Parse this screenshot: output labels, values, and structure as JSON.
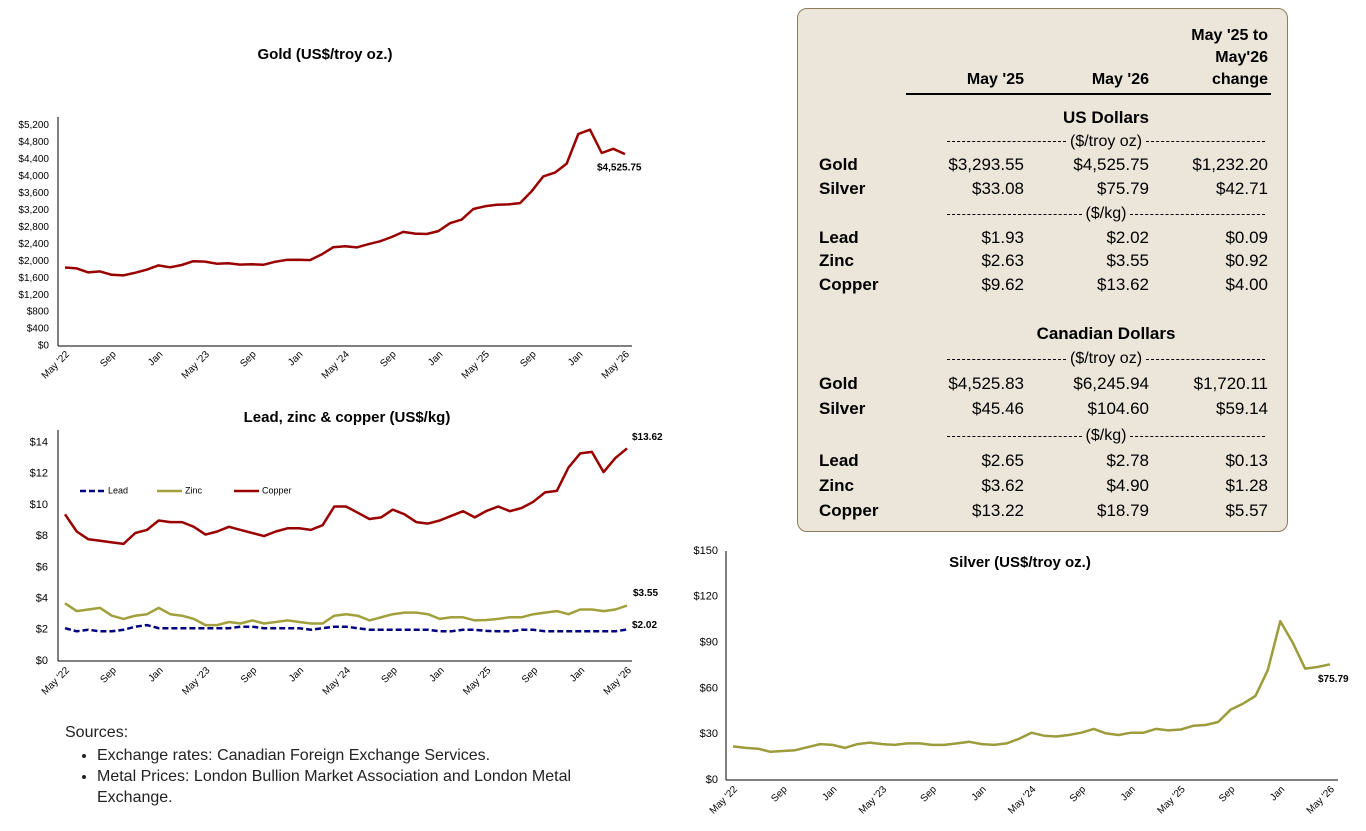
{
  "chart_data": [
    {
      "type": "line",
      "title": "Gold (US$/troy oz.)",
      "categories": [
        "May '22",
        null,
        null,
        null,
        "Sep",
        null,
        null,
        null,
        "Jan",
        null,
        null,
        null,
        "May '23",
        null,
        null,
        null,
        "Sep",
        null,
        null,
        null,
        "Jan",
        null,
        null,
        null,
        "May '24",
        null,
        null,
        null,
        "Sep",
        null,
        null,
        null,
        "Jan",
        null,
        null,
        null,
        "May '25",
        null,
        null,
        null,
        "Sep",
        null,
        null,
        null,
        "Jan",
        null,
        null,
        null,
        "May '26"
      ],
      "values": [
        1850,
        1830,
        1735,
        1760,
        1680,
        1665,
        1725,
        1800,
        1900,
        1855,
        1910,
        2000,
        1990,
        1940,
        1950,
        1920,
        1930,
        1915,
        1985,
        2030,
        2035,
        2025,
        2160,
        2330,
        2350,
        2325,
        2400,
        2470,
        2570,
        2690,
        2650,
        2640,
        2710,
        2895,
        2980,
        3230,
        3293.55,
        3330,
        3340,
        3370,
        3650,
        4000,
        4090,
        4300,
        5000,
        5100,
        4550,
        4650,
        4525.75
      ],
      "value_labels": [
        null,
        null,
        null,
        null,
        null,
        null,
        null,
        null,
        null,
        null,
        null,
        null,
        null,
        null,
        null,
        null,
        null,
        null,
        null,
        null,
        null,
        null,
        null,
        null,
        null,
        null,
        null,
        null,
        null,
        null,
        null,
        null,
        null,
        null,
        null,
        null,
        null,
        null,
        null,
        null,
        null,
        null,
        null,
        null,
        null,
        null,
        null,
        null,
        "$4,525.75"
      ],
      "color": "#990000",
      "ylim": [
        0,
        5400
      ],
      "yticks": [
        {
          "value": 0,
          "label": "$0"
        },
        {
          "value": 400,
          "label": "$400"
        },
        {
          "value": 800,
          "label": "$800"
        },
        {
          "value": 1200,
          "label": "$1,200"
        },
        {
          "value": 1600,
          "label": "$1,600"
        },
        {
          "value": 2000,
          "label": "$2,000"
        },
        {
          "value": 2400,
          "label": "$2,400"
        },
        {
          "value": 2800,
          "label": "$2,800"
        },
        {
          "value": 3200,
          "label": "$3,200"
        },
        {
          "value": 3600,
          "label": "$3,600"
        },
        {
          "value": 4000,
          "label": "$4,000"
        },
        {
          "value": 4400,
          "label": "$4,400"
        },
        {
          "value": 4800,
          "label": "$4,800"
        },
        {
          "value": 5200,
          "label": "$5,200"
        }
      ],
      "grid": false
    },
    {
      "type": "line",
      "title": "Lead, zinc & copper (US$/kg)",
      "categories": [
        "May '22",
        null,
        null,
        null,
        "Sep",
        null,
        null,
        null,
        "Jan",
        null,
        null,
        null,
        "May '23",
        null,
        null,
        null,
        "Sep",
        null,
        null,
        null,
        "Jan",
        null,
        null,
        null,
        "May '24",
        null,
        null,
        null,
        "Sep",
        null,
        null,
        null,
        "Jan",
        null,
        null,
        null,
        "May '25",
        null,
        null,
        null,
        "Sep",
        null,
        null,
        null,
        "Jan",
        null,
        null,
        null,
        "May '26"
      ],
      "series": [
        {
          "name": "Lead",
          "color": "#000080",
          "line_style": "dashed",
          "values": [
            2.1,
            1.9,
            2.0,
            1.9,
            1.9,
            2.0,
            2.2,
            2.3,
            2.1,
            2.1,
            2.1,
            2.1,
            2.1,
            2.1,
            2.1,
            2.2,
            2.2,
            2.1,
            2.1,
            2.1,
            2.1,
            2.0,
            2.1,
            2.2,
            2.2,
            2.1,
            2.0,
            2.0,
            2.0,
            2.0,
            2.0,
            2.0,
            1.9,
            1.9,
            2.0,
            2.0,
            1.93,
            1.9,
            1.9,
            2.0,
            2.0,
            1.9,
            1.9,
            1.9,
            1.9,
            1.9,
            1.9,
            1.9,
            2.02
          ],
          "value_labels": [
            null,
            null,
            null,
            null,
            null,
            null,
            null,
            null,
            null,
            null,
            null,
            null,
            null,
            null,
            null,
            null,
            null,
            null,
            null,
            null,
            null,
            null,
            null,
            null,
            null,
            null,
            null,
            null,
            null,
            null,
            null,
            null,
            null,
            null,
            null,
            null,
            null,
            null,
            null,
            null,
            null,
            null,
            null,
            null,
            null,
            null,
            null,
            null,
            "$2.02"
          ]
        },
        {
          "name": "Zinc",
          "color": "#a0a03c",
          "line_style": "solid",
          "values": [
            3.7,
            3.2,
            3.3,
            3.4,
            2.9,
            2.7,
            2.9,
            3.0,
            3.4,
            3.0,
            2.9,
            2.7,
            2.3,
            2.3,
            2.5,
            2.4,
            2.6,
            2.4,
            2.5,
            2.6,
            2.5,
            2.4,
            2.4,
            2.9,
            3.0,
            2.9,
            2.6,
            2.8,
            3.0,
            3.1,
            3.1,
            3.0,
            2.7,
            2.8,
            2.8,
            2.6,
            2.63,
            2.7,
            2.8,
            2.8,
            3.0,
            3.1,
            3.2,
            3.0,
            3.3,
            3.3,
            3.2,
            3.3,
            3.55
          ],
          "value_labels": [
            null,
            null,
            null,
            null,
            null,
            null,
            null,
            null,
            null,
            null,
            null,
            null,
            null,
            null,
            null,
            null,
            null,
            null,
            null,
            null,
            null,
            null,
            null,
            null,
            null,
            null,
            null,
            null,
            null,
            null,
            null,
            null,
            null,
            null,
            null,
            null,
            null,
            null,
            null,
            null,
            null,
            null,
            null,
            null,
            null,
            null,
            null,
            null,
            "$3.55"
          ]
        },
        {
          "name": "Copper",
          "color": "#990000",
          "line_style": "solid",
          "values": [
            9.4,
            8.3,
            7.8,
            7.7,
            7.6,
            7.5,
            8.2,
            8.4,
            9.0,
            8.9,
            8.9,
            8.6,
            8.1,
            8.3,
            8.6,
            8.4,
            8.2,
            8.0,
            8.3,
            8.5,
            8.5,
            8.4,
            8.7,
            9.9,
            9.9,
            9.5,
            9.1,
            9.2,
            9.7,
            9.4,
            8.9,
            8.8,
            9.0,
            9.3,
            9.6,
            9.2,
            9.62,
            9.9,
            9.6,
            9.8,
            10.2,
            10.8,
            10.9,
            12.4,
            13.3,
            13.4,
            12.1,
            13.0,
            13.62
          ],
          "value_labels": [
            null,
            null,
            null,
            null,
            null,
            null,
            null,
            null,
            null,
            null,
            null,
            null,
            null,
            null,
            null,
            null,
            null,
            null,
            null,
            null,
            null,
            null,
            null,
            null,
            null,
            null,
            null,
            null,
            null,
            null,
            null,
            null,
            null,
            null,
            null,
            null,
            null,
            null,
            null,
            null,
            null,
            null,
            null,
            null,
            null,
            null,
            null,
            null,
            "$13.62"
          ]
        }
      ],
      "legend": "upper-left",
      "ylim": [
        0,
        14.8
      ],
      "yticks": [
        {
          "value": 0,
          "label": "$0"
        },
        {
          "value": 2,
          "label": "$2"
        },
        {
          "value": 4,
          "label": "$4"
        },
        {
          "value": 6,
          "label": "$6"
        },
        {
          "value": 8,
          "label": "$8"
        },
        {
          "value": 10,
          "label": "$10"
        },
        {
          "value": 12,
          "label": "$12"
        },
        {
          "value": 14,
          "label": "$14"
        }
      ],
      "grid": false
    },
    {
      "type": "line",
      "title": "Silver (US$/troy oz.)",
      "categories": [
        "May '22",
        null,
        null,
        null,
        "Sep",
        null,
        null,
        null,
        "Jan",
        null,
        null,
        null,
        "May '23",
        null,
        null,
        null,
        "Sep",
        null,
        null,
        null,
        "Jan",
        null,
        null,
        null,
        "May '24",
        null,
        null,
        null,
        "Sep",
        null,
        null,
        null,
        "Jan",
        null,
        null,
        null,
        "May '25",
        null,
        null,
        null,
        "Sep",
        null,
        null,
        null,
        "Jan",
        null,
        null,
        null,
        "May '26"
      ],
      "values": [
        22,
        21,
        20.5,
        18.5,
        19,
        19.5,
        21.5,
        23.5,
        23,
        21,
        23.5,
        24.5,
        23.5,
        23,
        24,
        24,
        23,
        23,
        24,
        25,
        23.5,
        23,
        24,
        27,
        31,
        29,
        28.5,
        29.5,
        31,
        33.5,
        30.5,
        29.5,
        31,
        31,
        33.5,
        32.5,
        33.08,
        35.5,
        36,
        38,
        46,
        50,
        55,
        72,
        104,
        90,
        73,
        74,
        75.79
      ],
      "value_labels": [
        null,
        null,
        null,
        null,
        null,
        null,
        null,
        null,
        null,
        null,
        null,
        null,
        null,
        null,
        null,
        null,
        null,
        null,
        null,
        null,
        null,
        null,
        null,
        null,
        null,
        null,
        null,
        null,
        null,
        null,
        null,
        null,
        null,
        null,
        null,
        null,
        null,
        null,
        null,
        null,
        null,
        null,
        null,
        null,
        null,
        null,
        null,
        null,
        "$75.79"
      ],
      "color": "#9c9c3c",
      "ylim": [
        0,
        150
      ],
      "yticks": [
        {
          "value": 0,
          "label": "$0"
        },
        {
          "value": 30,
          "label": "$30"
        },
        {
          "value": 60,
          "label": "$60"
        },
        {
          "value": 90,
          "label": "$90"
        },
        {
          "value": 120,
          "label": "$120"
        },
        {
          "value": 150,
          "label": "$150"
        }
      ],
      "grid": false
    }
  ],
  "table": {
    "columns": [
      "May '25",
      "May '26",
      "May '25 to\nMay'26\nchange"
    ],
    "sections": [
      {
        "title": "US Dollars",
        "groups": [
          {
            "unit": "($/troy oz)",
            "rows": [
              [
                "Gold",
                "$3,293.55",
                "$4,525.75",
                "$1,232.20"
              ],
              [
                "Silver",
                "$33.08",
                "$75.79",
                "$42.71"
              ]
            ]
          },
          {
            "unit": "($/kg)",
            "rows": [
              [
                "Lead",
                "$1.93",
                "$2.02",
                "$0.09"
              ],
              [
                "Zinc",
                "$2.63",
                "$3.55",
                "$0.92"
              ],
              [
                "Copper",
                "$9.62",
                "$13.62",
                "$4.00"
              ]
            ]
          }
        ]
      },
      {
        "title": "Canadian Dollars",
        "groups": [
          {
            "unit": "($/troy oz)",
            "rows": [
              [
                "Gold",
                "$4,525.83",
                "$6,245.94",
                "$1,720.11"
              ],
              [
                "Silver",
                "$45.46",
                "$104.60",
                "$59.14"
              ]
            ]
          },
          {
            "unit": "($/kg)",
            "rows": [
              [
                "Lead",
                "$2.65",
                "$2.78",
                "$0.13"
              ],
              [
                "Zinc",
                "$3.62",
                "$4.90",
                "$1.28"
              ],
              [
                "Copper",
                "$13.22",
                "$18.79",
                "$5.57"
              ]
            ]
          }
        ]
      }
    ]
  },
  "sources": {
    "title": "Sources:",
    "items": [
      "Exchange rates: Canadian Foreign Exchange Services.",
      "Metal Prices: London Bullion Market Association and London Metal Exchange."
    ]
  }
}
